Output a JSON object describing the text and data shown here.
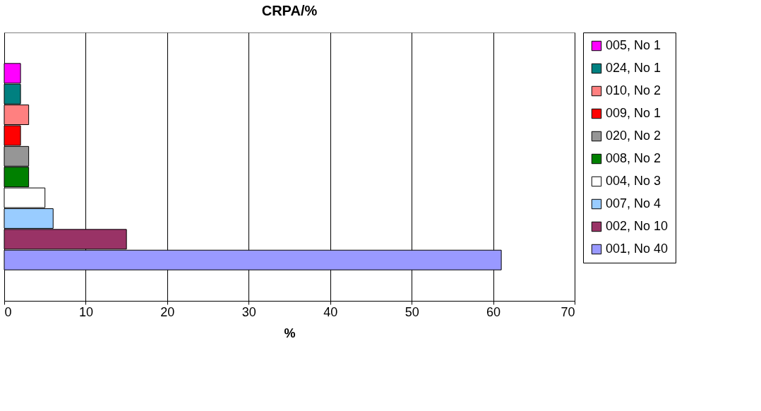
{
  "chart_data": {
    "type": "bar",
    "title": "CRPA/%",
    "xlabel": "%",
    "orientation": "horizontal",
    "categories": [
      null
    ],
    "series": [
      {
        "name": "005, No 1",
        "color": "#ff00ff",
        "values": [
          2
        ]
      },
      {
        "name": "024, No 1",
        "color": "#008080",
        "values": [
          2
        ]
      },
      {
        "name": "010, No 2",
        "color": "#ff8080",
        "values": [
          3
        ]
      },
      {
        "name": "009, No 1",
        "color": "#ff0000",
        "values": [
          2
        ]
      },
      {
        "name": "020, No 2",
        "color": "#969696",
        "values": [
          3
        ]
      },
      {
        "name": "008, No 2",
        "color": "#008000",
        "values": [
          3
        ]
      },
      {
        "name": "004, No 3",
        "color": "#ffffff",
        "values": [
          5
        ]
      },
      {
        "name": "007, No 4",
        "color": "#99ccff",
        "values": [
          6
        ]
      },
      {
        "name": "002, No 10",
        "color": "#993366",
        "values": [
          15
        ]
      },
      {
        "name": "001, No 40",
        "color": "#9999ff",
        "values": [
          61
        ]
      }
    ],
    "xlim": [
      0,
      70
    ],
    "xticks": [
      0,
      10,
      20,
      30,
      40,
      50,
      60,
      70
    ],
    "grid": "x",
    "legend": "right"
  }
}
